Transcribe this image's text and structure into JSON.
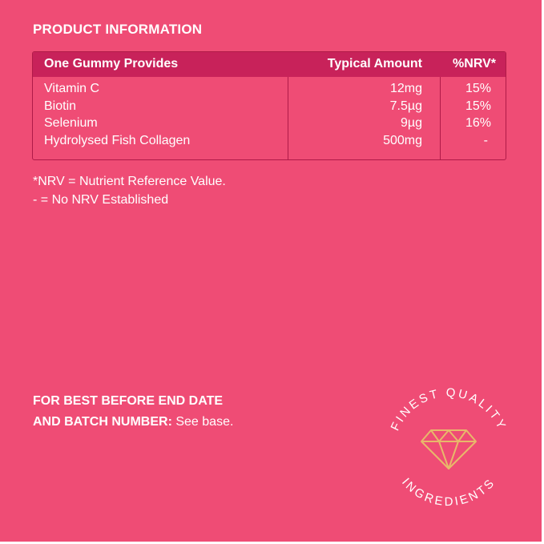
{
  "section_title": "PRODUCT INFORMATION",
  "table": {
    "headers": {
      "provides": "One Gummy Provides",
      "amount": "Typical Amount",
      "nrv": "%NRV*"
    },
    "rows": [
      {
        "name": "Vitamin C",
        "amount": "12mg",
        "nrv": "15%"
      },
      {
        "name": "Biotin",
        "amount": "7.5µg",
        "nrv": "15%"
      },
      {
        "name": "Selenium",
        "amount": "9µg",
        "nrv": "16%"
      },
      {
        "name": "Hydrolysed Fish Collagen",
        "amount": "500mg",
        "nrv": "-"
      }
    ]
  },
  "notes": {
    "nrv_definition": "*NRV = Nutrient Reference Value.",
    "no_nrv": "- = No NRV Established"
  },
  "best_before": {
    "line1": "FOR BEST BEFORE END DATE",
    "line2_bold": "AND BATCH NUMBER:",
    "line2_rest": " See base."
  },
  "seal": {
    "top_text": "FINEST QUALITY",
    "bottom_text": "INGREDIENTS",
    "icon": "diamond-icon",
    "gem_color": "#E8B86A"
  },
  "colors": {
    "background": "#EF4C75",
    "header": "#C8225A",
    "border": "#B01A48"
  }
}
